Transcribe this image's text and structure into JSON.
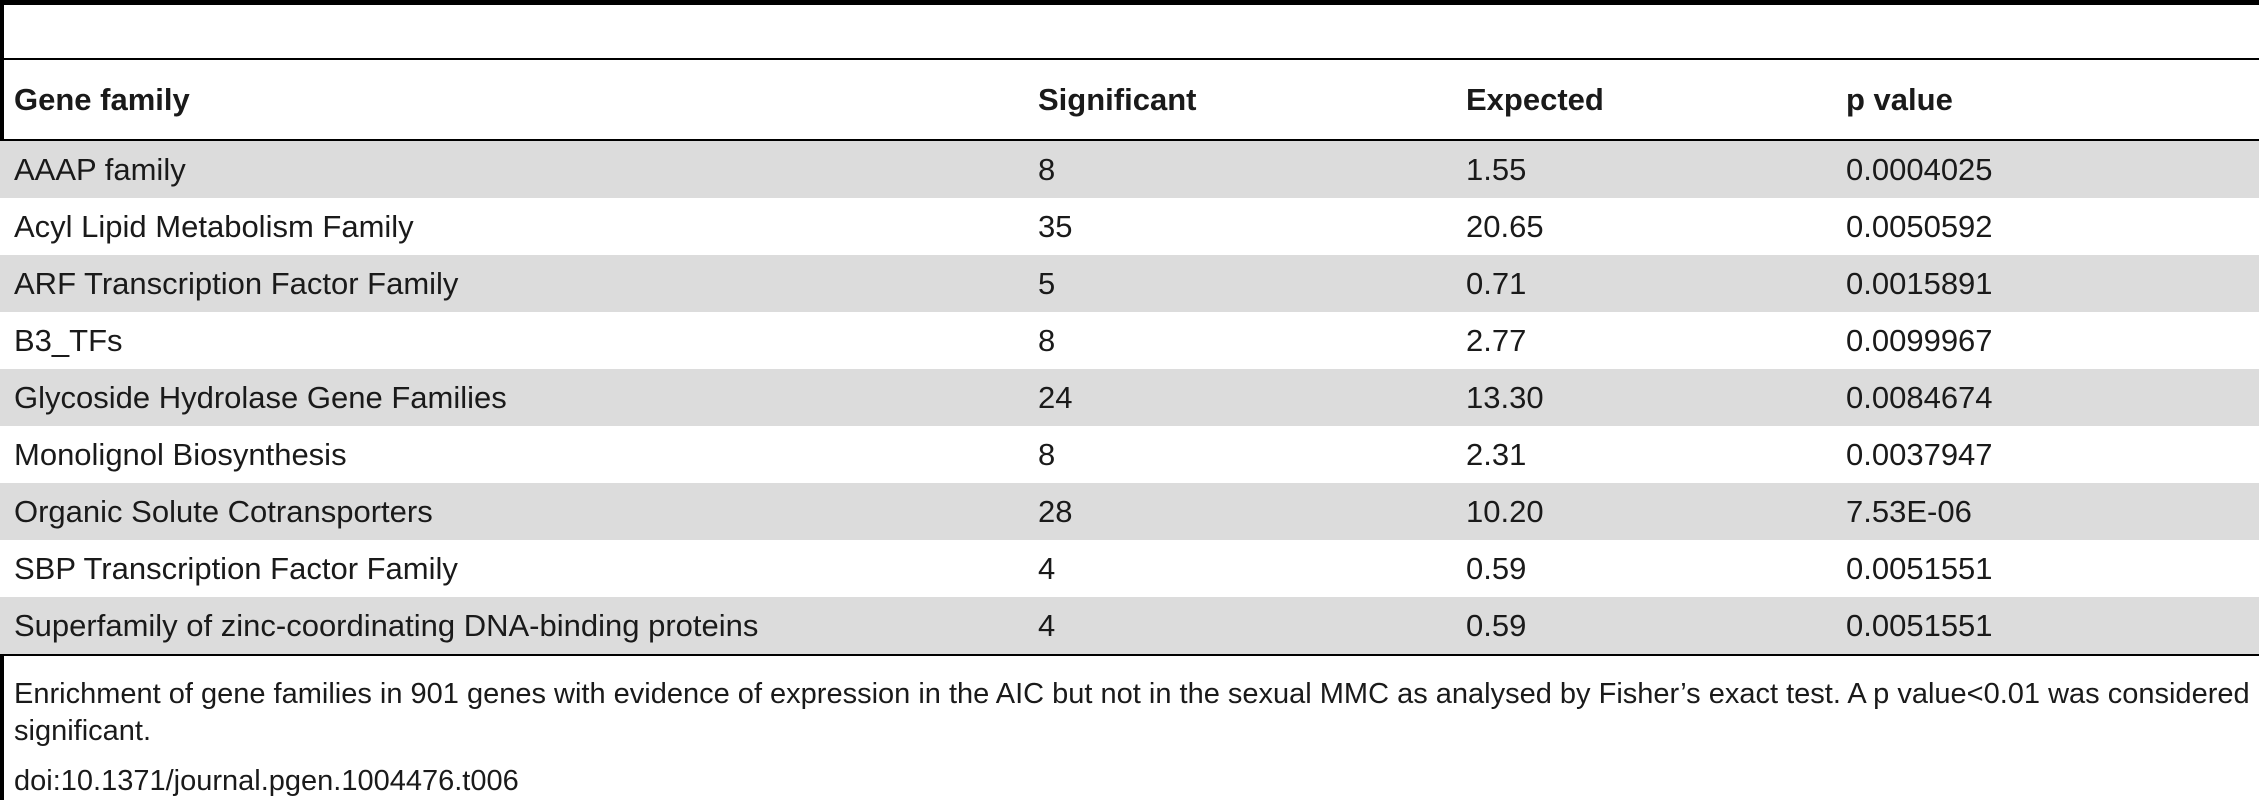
{
  "table": {
    "columns": [
      "Gene family",
      "Significant",
      "Expected",
      "p value"
    ],
    "rows": [
      [
        "AAAP family",
        "8",
        "1.55",
        "0.0004025"
      ],
      [
        "Acyl Lipid Metabolism Family",
        "35",
        "20.65",
        "0.0050592"
      ],
      [
        "ARF Transcription Factor Family",
        "5",
        "0.71",
        "0.0015891"
      ],
      [
        "B3_TFs",
        "8",
        "2.77",
        "0.0099967"
      ],
      [
        "Glycoside Hydrolase Gene Families",
        "24",
        "13.30",
        "0.0084674"
      ],
      [
        "Monolignol Biosynthesis",
        "8",
        "2.31",
        "0.0037947"
      ],
      [
        "Organic Solute Cotransporters",
        "28",
        "10.20",
        "7.53E-06"
      ],
      [
        "SBP Transcription Factor Family",
        "4",
        "0.59",
        "0.0051551"
      ],
      [
        "Superfamily of zinc-coordinating DNA-binding proteins",
        "4",
        "0.59",
        "0.0051551"
      ]
    ]
  },
  "footnote": "Enrichment of gene families in 901 genes with evidence of expression in the AIC but not in the sexual MMC as analysed by Fisher’s exact test. A p value<0.01 was considered significant.",
  "doi": "doi:10.1371/journal.pgen.1004476.t006",
  "colors": {
    "stripe": "#dcdcdc",
    "rule": "#000000"
  }
}
